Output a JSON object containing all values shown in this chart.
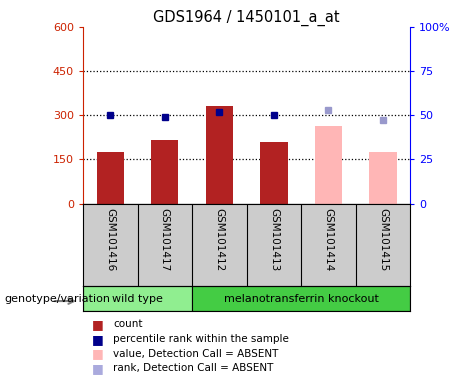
{
  "title": "GDS1964 / 1450101_a_at",
  "samples": [
    "GSM101416",
    "GSM101417",
    "GSM101412",
    "GSM101413",
    "GSM101414",
    "GSM101415"
  ],
  "bar_values": [
    175,
    215,
    330,
    210,
    null,
    null
  ],
  "bar_absent_values": [
    null,
    null,
    null,
    null,
    265,
    175
  ],
  "percentile_values": [
    50,
    49,
    52,
    50,
    null,
    null
  ],
  "percentile_absent_values": [
    null,
    null,
    null,
    null,
    53,
    47
  ],
  "bar_color": "#b22222",
  "bar_absent_color": "#ffb6b6",
  "dot_color": "#00008b",
  "dot_absent_color": "#9999cc",
  "left_ylim": [
    0,
    600
  ],
  "right_ylim": [
    0,
    100
  ],
  "left_yticks": [
    0,
    150,
    300,
    450,
    600
  ],
  "right_yticks": [
    0,
    25,
    50,
    75,
    100
  ],
  "left_yticklabels": [
    "0",
    "150",
    "300",
    "450",
    "600"
  ],
  "right_yticklabels": [
    "0",
    "25",
    "50",
    "75",
    "100%"
  ],
  "hlines": [
    150,
    300,
    450
  ],
  "wild_type_samples": [
    0,
    1
  ],
  "knockout_samples": [
    2,
    3,
    4,
    5
  ],
  "genotype_label": "genotype/variation",
  "wild_type_label": "wild type",
  "knockout_label": "melanotransferrin knockout",
  "wild_type_color": "#90ee90",
  "knockout_color": "#44cc44",
  "bg_color": "#cccccc",
  "legend_items": [
    {
      "color": "#b22222",
      "label": "count"
    },
    {
      "color": "#00008b",
      "label": "percentile rank within the sample"
    },
    {
      "color": "#ffb6b6",
      "label": "value, Detection Call = ABSENT"
    },
    {
      "color": "#aaaadd",
      "label": "rank, Detection Call = ABSENT"
    }
  ]
}
